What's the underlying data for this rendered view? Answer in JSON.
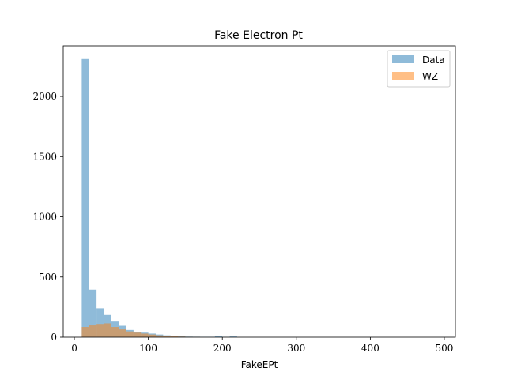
{
  "chart_data": {
    "type": "bar",
    "title": "Fake Electron Pt",
    "xlabel": "FakeEPt",
    "ylabel": "",
    "xlim": [
      -15,
      515
    ],
    "ylim": [
      0,
      2420
    ],
    "xticks": [
      0,
      100,
      200,
      300,
      400,
      500
    ],
    "yticks": [
      0,
      500,
      1000,
      1500,
      2000
    ],
    "grid": false,
    "legend_position": "top-right",
    "bin_width": 10,
    "series": [
      {
        "name": "Data",
        "color": "#1f77b4",
        "alpha": 0.5,
        "bins": [
          {
            "x": 10,
            "y": 2310
          },
          {
            "x": 20,
            "y": 395
          },
          {
            "x": 30,
            "y": 240
          },
          {
            "x": 40,
            "y": 185
          },
          {
            "x": 50,
            "y": 130
          },
          {
            "x": 60,
            "y": 95
          },
          {
            "x": 70,
            "y": 60
          },
          {
            "x": 80,
            "y": 42
          },
          {
            "x": 90,
            "y": 38
          },
          {
            "x": 100,
            "y": 30
          },
          {
            "x": 110,
            "y": 22
          },
          {
            "x": 120,
            "y": 15
          },
          {
            "x": 130,
            "y": 10
          },
          {
            "x": 140,
            "y": 8
          },
          {
            "x": 150,
            "y": 5
          },
          {
            "x": 160,
            "y": 4
          },
          {
            "x": 170,
            "y": 3
          },
          {
            "x": 180,
            "y": 3
          },
          {
            "x": 190,
            "y": 7
          },
          {
            "x": 200,
            "y": 2
          },
          {
            "x": 210,
            "y": 6
          }
        ]
      },
      {
        "name": "WZ",
        "color": "#ff7f0e",
        "alpha": 0.5,
        "bins": [
          {
            "x": 10,
            "y": 85
          },
          {
            "x": 20,
            "y": 98
          },
          {
            "x": 30,
            "y": 110
          },
          {
            "x": 40,
            "y": 115
          },
          {
            "x": 50,
            "y": 85
          },
          {
            "x": 60,
            "y": 65
          },
          {
            "x": 70,
            "y": 48
          },
          {
            "x": 80,
            "y": 38
          },
          {
            "x": 90,
            "y": 30
          },
          {
            "x": 100,
            "y": 22
          },
          {
            "x": 110,
            "y": 15
          },
          {
            "x": 120,
            "y": 10
          },
          {
            "x": 130,
            "y": 7
          },
          {
            "x": 140,
            "y": 5
          },
          {
            "x": 150,
            "y": 3
          },
          {
            "x": 160,
            "y": 2
          }
        ]
      }
    ]
  }
}
